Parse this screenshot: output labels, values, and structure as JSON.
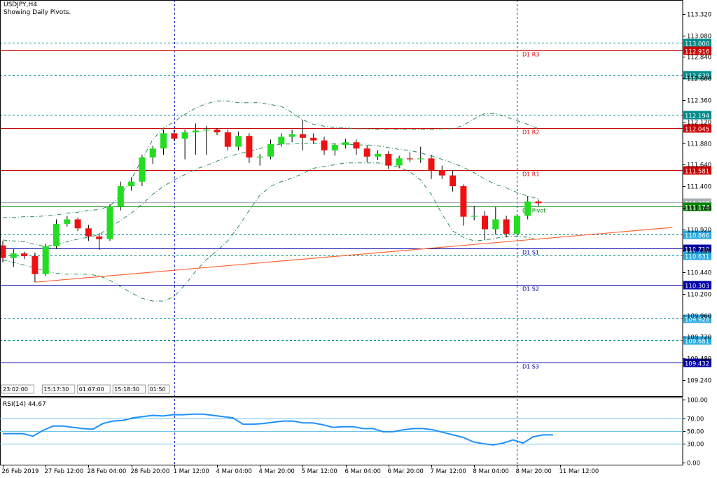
{
  "header": {
    "symbol": "USDJPY,H4",
    "subtitle": "Showing Daily Pivots."
  },
  "session_labels": [
    "23:02:00",
    "15:17:30",
    "01:07:00",
    "15:18:30",
    "01:50"
  ],
  "colors": {
    "bull": "#22dd22",
    "bear": "#ee1111",
    "wick": "#000000",
    "resistance": "#cc0000",
    "support": "#0000aa",
    "pivot": "#008800",
    "midlevel": "#008b8b",
    "bollinger": "#2e8b57",
    "trendline": "#ff6633",
    "rsi": "#1e90ff",
    "rsi_levels": "#6fc6e8",
    "vgrid": "#1a1acc"
  },
  "chart_data": [
    {
      "type": "candlestick",
      "title": "USDJPY,H4",
      "ylim": [
        109.06,
        113.46
      ],
      "price_ticks": [
        "113.320",
        "113.080",
        "112.840",
        "112.600",
        "112.360",
        "112.120",
        "111.880",
        "111.640",
        "111.400",
        "111.160",
        "110.920",
        "110.680",
        "110.440",
        "110.200",
        "109.960",
        "109.720",
        "109.480",
        "109.240"
      ],
      "x_labels": [
        {
          "i": 0,
          "label": "26 Feb 2019"
        },
        {
          "i": 4,
          "label": "27 Feb 12:00"
        },
        {
          "i": 8,
          "label": "28 Feb 04:00"
        },
        {
          "i": 12,
          "label": "28 Feb 20:00"
        },
        {
          "i": 16,
          "label": "1 Mar 12:00"
        },
        {
          "i": 20,
          "label": "4 Mar 04:00"
        },
        {
          "i": 24,
          "label": "4 Mar 20:00"
        },
        {
          "i": 28,
          "label": "5 Mar 12:00"
        },
        {
          "i": 32,
          "label": "6 Mar 04:00"
        },
        {
          "i": 36,
          "label": "6 Mar 20:00"
        },
        {
          "i": 40,
          "label": "7 Mar 12:00"
        },
        {
          "i": 44,
          "label": "8 Mar 04:00"
        },
        {
          "i": 48,
          "label": "8 Mar 20:00"
        },
        {
          "i": 52,
          "label": "11 Mar 12:00"
        }
      ],
      "candles": [
        {
          "o": 110.74,
          "h": 110.79,
          "l": 110.55,
          "c": 110.6
        },
        {
          "o": 110.6,
          "h": 110.7,
          "l": 110.5,
          "c": 110.65
        },
        {
          "o": 110.65,
          "h": 110.67,
          "l": 110.59,
          "c": 110.62
        },
        {
          "o": 110.62,
          "h": 110.66,
          "l": 110.33,
          "c": 110.42
        },
        {
          "o": 110.42,
          "h": 110.76,
          "l": 110.4,
          "c": 110.73
        },
        {
          "o": 110.73,
          "h": 111.03,
          "l": 110.7,
          "c": 110.98
        },
        {
          "o": 110.98,
          "h": 111.07,
          "l": 110.95,
          "c": 111.03
        },
        {
          "o": 111.03,
          "h": 111.05,
          "l": 110.9,
          "c": 110.93
        },
        {
          "o": 110.93,
          "h": 110.97,
          "l": 110.79,
          "c": 110.84
        },
        {
          "o": 110.84,
          "h": 110.88,
          "l": 110.69,
          "c": 110.81
        },
        {
          "o": 110.81,
          "h": 111.2,
          "l": 110.79,
          "c": 111.17
        },
        {
          "o": 111.17,
          "h": 111.45,
          "l": 111.13,
          "c": 111.4
        },
        {
          "o": 111.4,
          "h": 111.5,
          "l": 111.35,
          "c": 111.45
        },
        {
          "o": 111.45,
          "h": 111.75,
          "l": 111.4,
          "c": 111.72
        },
        {
          "o": 111.72,
          "h": 111.85,
          "l": 111.65,
          "c": 111.82
        },
        {
          "o": 111.82,
          "h": 112.03,
          "l": 111.75,
          "c": 111.99
        },
        {
          "o": 111.99,
          "h": 112.03,
          "l": 111.9,
          "c": 111.93
        },
        {
          "o": 111.93,
          "h": 112.03,
          "l": 111.7,
          "c": 112.0
        },
        {
          "o": 112.0,
          "h": 112.1,
          "l": 111.75,
          "c": 112.02
        },
        {
          "o": 112.02,
          "h": 112.07,
          "l": 111.75,
          "c": 112.03
        },
        {
          "o": 112.03,
          "h": 112.05,
          "l": 111.97,
          "c": 112.0
        },
        {
          "o": 112.0,
          "h": 112.03,
          "l": 111.8,
          "c": 111.84
        },
        {
          "o": 111.84,
          "h": 112.01,
          "l": 111.8,
          "c": 111.96
        },
        {
          "o": 111.96,
          "h": 111.99,
          "l": 111.66,
          "c": 111.72
        },
        {
          "o": 111.72,
          "h": 111.76,
          "l": 111.63,
          "c": 111.73
        },
        {
          "o": 111.73,
          "h": 111.92,
          "l": 111.7,
          "c": 111.87
        },
        {
          "o": 111.87,
          "h": 111.99,
          "l": 111.84,
          "c": 111.95
        },
        {
          "o": 111.95,
          "h": 112.03,
          "l": 111.89,
          "c": 111.98
        },
        {
          "o": 111.98,
          "h": 112.14,
          "l": 111.8,
          "c": 111.94
        },
        {
          "o": 111.94,
          "h": 111.99,
          "l": 111.87,
          "c": 111.91
        },
        {
          "o": 111.91,
          "h": 111.95,
          "l": 111.75,
          "c": 111.8
        },
        {
          "o": 111.8,
          "h": 111.88,
          "l": 111.74,
          "c": 111.86
        },
        {
          "o": 111.86,
          "h": 111.93,
          "l": 111.82,
          "c": 111.89
        },
        {
          "o": 111.89,
          "h": 111.92,
          "l": 111.75,
          "c": 111.82
        },
        {
          "o": 111.82,
          "h": 111.86,
          "l": 111.67,
          "c": 111.73
        },
        {
          "o": 111.73,
          "h": 111.8,
          "l": 111.69,
          "c": 111.76
        },
        {
          "o": 111.76,
          "h": 111.79,
          "l": 111.59,
          "c": 111.63
        },
        {
          "o": 111.63,
          "h": 111.74,
          "l": 111.6,
          "c": 111.71
        },
        {
          "o": 111.71,
          "h": 111.78,
          "l": 111.67,
          "c": 111.7
        },
        {
          "o": 111.7,
          "h": 111.84,
          "l": 111.66,
          "c": 111.71
        },
        {
          "o": 111.71,
          "h": 111.75,
          "l": 111.48,
          "c": 111.58
        },
        {
          "o": 111.58,
          "h": 111.63,
          "l": 111.48,
          "c": 111.52
        },
        {
          "o": 111.52,
          "h": 111.58,
          "l": 111.34,
          "c": 111.4
        },
        {
          "o": 111.4,
          "h": 111.42,
          "l": 110.96,
          "c": 111.06
        },
        {
          "o": 111.06,
          "h": 111.18,
          "l": 111.02,
          "c": 111.07
        },
        {
          "o": 111.07,
          "h": 111.12,
          "l": 110.8,
          "c": 110.92
        },
        {
          "o": 110.92,
          "h": 111.17,
          "l": 110.86,
          "c": 111.03
        },
        {
          "o": 111.03,
          "h": 111.07,
          "l": 110.83,
          "c": 110.87
        },
        {
          "o": 110.87,
          "h": 111.09,
          "l": 110.86,
          "c": 111.07
        },
        {
          "o": 111.07,
          "h": 111.29,
          "l": 111.03,
          "c": 111.23
        },
        {
          "o": 111.23,
          "h": 111.25,
          "l": 111.18,
          "c": 111.21
        }
      ],
      "bollinger_upper": [
        111.05,
        111.05,
        111.06,
        111.06,
        111.07,
        111.08,
        111.1,
        111.11,
        111.13,
        111.14,
        111.18,
        111.3,
        111.48,
        111.7,
        111.92,
        112.05,
        112.12,
        112.2,
        112.27,
        112.32,
        112.35,
        112.35,
        112.33,
        112.33,
        112.33,
        112.31,
        112.29,
        112.22,
        112.14,
        112.09,
        112.07,
        112.05,
        112.05,
        112.04,
        112.04,
        112.03,
        112.03,
        112.03,
        112.03,
        112.03,
        112.03,
        112.04,
        112.04,
        112.08,
        112.15,
        112.21,
        112.21,
        112.17,
        112.13,
        112.09,
        112.04
      ],
      "bollinger_mid": [
        110.8,
        110.79,
        110.78,
        110.75,
        110.73,
        110.75,
        110.78,
        110.81,
        110.83,
        110.86,
        110.94,
        111.02,
        111.1,
        111.2,
        111.31,
        111.4,
        111.47,
        111.53,
        111.59,
        111.63,
        111.68,
        111.73,
        111.76,
        111.79,
        111.82,
        111.85,
        111.87,
        111.87,
        111.88,
        111.88,
        111.87,
        111.87,
        111.87,
        111.86,
        111.86,
        111.85,
        111.83,
        111.81,
        111.8,
        111.77,
        111.74,
        111.7,
        111.66,
        111.61,
        111.55,
        111.48,
        111.42,
        111.38,
        111.33,
        111.29,
        111.26
      ],
      "bollinger_lower": [
        110.58,
        110.55,
        110.52,
        110.49,
        110.45,
        110.43,
        110.42,
        110.42,
        110.42,
        110.4,
        110.35,
        110.28,
        110.21,
        110.15,
        110.12,
        110.12,
        110.17,
        110.3,
        110.45,
        110.58,
        110.68,
        110.79,
        110.95,
        111.13,
        111.3,
        111.4,
        111.45,
        111.49,
        111.54,
        111.6,
        111.62,
        111.64,
        111.66,
        111.66,
        111.66,
        111.66,
        111.64,
        111.61,
        111.56,
        111.47,
        111.31,
        111.09,
        110.9,
        110.83,
        110.79,
        110.8,
        110.82,
        110.84,
        110.84,
        110.83,
        110.8
      ],
      "levels": [
        {
          "value": "113.000",
          "price": 113.0,
          "kind": "midlevel",
          "tag": ""
        },
        {
          "value": "112.916",
          "price": 112.916,
          "kind": "resistance",
          "tag": "D1 R3"
        },
        {
          "value": "112.639",
          "price": 112.639,
          "kind": "midlevel",
          "tag": ""
        },
        {
          "value": "112.194",
          "price": 112.194,
          "kind": "midlevel",
          "tag": ""
        },
        {
          "value": "112.045",
          "price": 112.045,
          "kind": "resistance",
          "tag": "D1 R2"
        },
        {
          "value": "111.581",
          "price": 111.581,
          "kind": "resistance",
          "tag": "D1 R1"
        },
        {
          "value": "111.218",
          "price": 111.218,
          "kind": "current",
          "tag": ""
        },
        {
          "value": "111.174",
          "price": 111.174,
          "kind": "pivot",
          "tag": "D1 Pivot"
        },
        {
          "value": "110.866",
          "price": 110.866,
          "kind": "midlevel",
          "tag": ""
        },
        {
          "value": "110.710",
          "price": 110.71,
          "kind": "support",
          "tag": "D1 S1"
        },
        {
          "value": "110.631",
          "price": 110.631,
          "kind": "midlevel",
          "tag": ""
        },
        {
          "value": "110.303",
          "price": 110.303,
          "kind": "support",
          "tag": "D1 S2"
        },
        {
          "value": "109.928",
          "price": 109.928,
          "kind": "midlevel",
          "tag": ""
        },
        {
          "value": "109.681",
          "price": 109.681,
          "kind": "midlevel",
          "tag": ""
        },
        {
          "value": "109.432",
          "price": 109.432,
          "kind": "support",
          "tag": "D1 S3"
        }
      ],
      "trendline": {
        "i1": 3,
        "p1": 110.33,
        "i2": 62.5,
        "p2": 110.94
      },
      "period_separators": [
        16,
        48
      ]
    },
    {
      "type": "line",
      "title": "RSI(14) 44.67",
      "ylim": [
        0,
        100
      ],
      "ticks": [
        "100.00",
        "70.00",
        "50.00",
        "30.00",
        "0.00"
      ],
      "levels": [
        70,
        50,
        30
      ],
      "values": [
        46,
        46,
        46,
        42,
        51,
        58,
        58,
        56,
        54,
        53,
        62,
        66,
        67,
        71,
        73,
        75,
        74,
        76,
        76,
        77,
        77,
        75,
        73,
        71,
        61,
        61,
        62,
        64,
        66,
        66,
        63,
        63,
        60,
        56,
        57,
        57,
        54,
        54,
        49,
        49,
        52,
        54,
        54,
        52,
        48,
        44,
        40,
        33,
        30,
        28,
        31,
        36,
        31,
        41,
        44,
        44
      ]
    }
  ]
}
